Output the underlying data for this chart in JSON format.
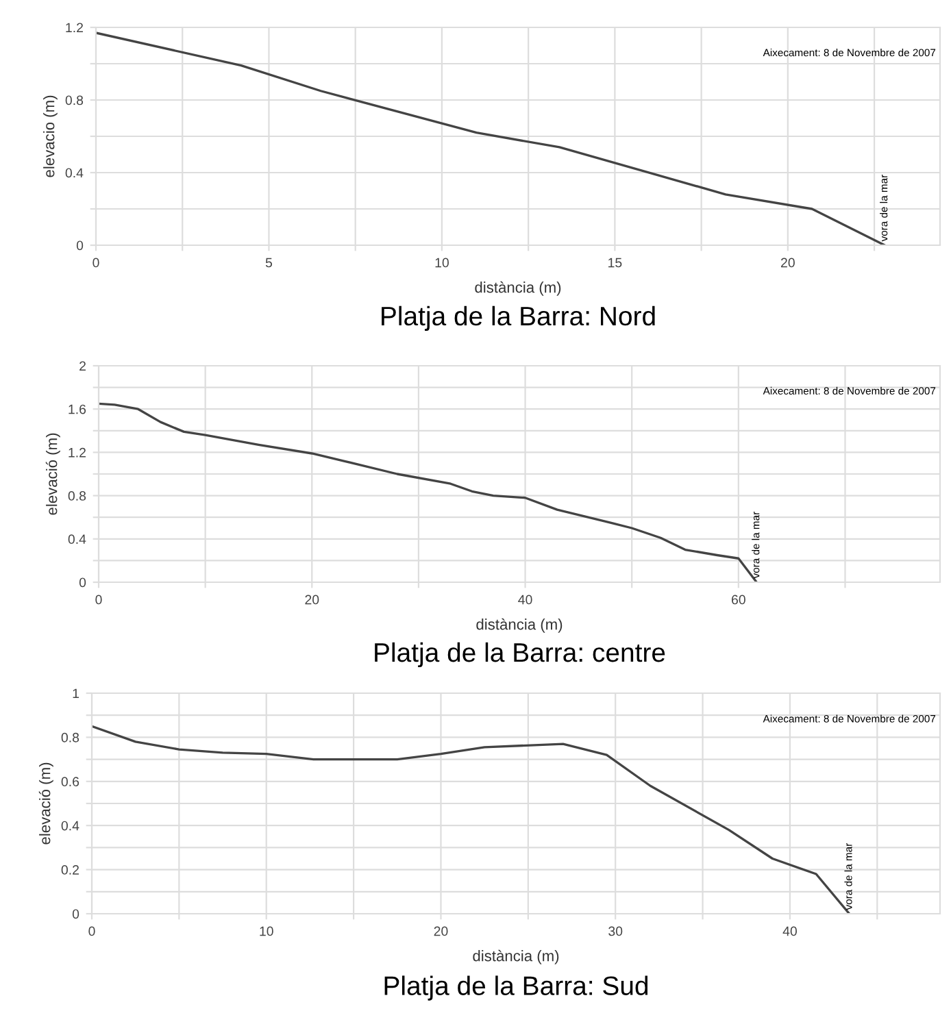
{
  "chart_data": [
    {
      "type": "line",
      "title": "Platja de la Barra: Nord",
      "xlabel": "distància (m)",
      "ylabel": "elevacio (m)",
      "x": [
        0,
        4.2,
        6.5,
        11,
        13.4,
        18.2,
        20.7,
        22.8
      ],
      "series": [
        {
          "color": "#444444",
          "values": [
            1.17,
            0.99,
            0.85,
            0.62,
            0.54,
            0.28,
            0.2,
            0.0
          ]
        }
      ],
      "xlim": [
        0,
        24.4
      ],
      "xticks": [
        0,
        {
          "value": 2.5,
          "label": null
        },
        5,
        {
          "value": 7.5,
          "label": null
        },
        10,
        {
          "value": 12.5,
          "label": null
        },
        15,
        {
          "value": 17.5,
          "label": null
        },
        20,
        {
          "value": 22.5,
          "label": null
        }
      ],
      "ylim": [
        0,
        1.2
      ],
      "yticks": [
        0,
        {
          "value": 0.2,
          "label": null
        },
        0.4,
        {
          "value": 0.6,
          "label": null
        },
        0.8,
        {
          "value": 1.0,
          "label": null
        },
        1.2
      ],
      "grid": true,
      "annotations": [
        "Aixecament: 8 de Novembre de 2007",
        {
          "text": "vora de la mar",
          "x": 22.8,
          "y": 0
        }
      ]
    },
    {
      "type": "line",
      "title": "Platja de la Barra: centre",
      "xlabel": "distància (m)",
      "ylabel": "elevació (m)",
      "x": [
        0,
        1.5,
        3.7,
        5.8,
        8,
        10,
        15,
        20,
        23,
        28,
        33,
        35,
        37,
        40,
        43,
        48,
        50,
        52.7,
        55,
        58,
        60,
        61.7
      ],
      "series": [
        {
          "color": "#444444",
          "values": [
            1.65,
            1.64,
            1.6,
            1.48,
            1.39,
            1.36,
            1.27,
            1.19,
            1.12,
            1.0,
            0.91,
            0.84,
            0.8,
            0.78,
            0.67,
            0.55,
            0.5,
            0.41,
            0.3,
            0.25,
            0.22,
            0.0
          ]
        }
      ],
      "xlim": [
        0,
        78.9
      ],
      "xticks": [
        0,
        {
          "value": 10,
          "label": null
        },
        20,
        {
          "value": 30,
          "label": null
        },
        40,
        {
          "value": 50,
          "label": null
        },
        60,
        {
          "value": 70,
          "label": null
        }
      ],
      "ylim": [
        0,
        2
      ],
      "yticks": [
        0,
        {
          "value": 0.2,
          "label": null
        },
        0.4,
        {
          "value": 0.6,
          "label": null
        },
        0.8,
        {
          "value": 1.0,
          "label": null
        },
        1.2,
        {
          "value": 1.4,
          "label": null
        },
        1.6,
        {
          "value": 1.8,
          "label": null
        },
        2
      ],
      "grid": true,
      "annotations": [
        "Aixecament: 8 de Novembre de 2007",
        {
          "text": "vora de la mar",
          "x": 61.7,
          "y": 0
        }
      ]
    },
    {
      "type": "line",
      "title": "Platja de la Barra: Sud",
      "xlabel": "distància (m)",
      "ylabel": "elevació (m)",
      "x": [
        0,
        2.5,
        5,
        7.5,
        10,
        12.7,
        17.5,
        20,
        22.5,
        27,
        29.5,
        32,
        36.5,
        39,
        41.5,
        43.4
      ],
      "series": [
        {
          "color": "#444444",
          "values": [
            0.85,
            0.78,
            0.745,
            0.73,
            0.725,
            0.7,
            0.7,
            0.725,
            0.755,
            0.77,
            0.72,
            0.58,
            0.38,
            0.25,
            0.18,
            0.0
          ]
        }
      ],
      "xlim": [
        0,
        48.6
      ],
      "xticks": [
        0,
        {
          "value": 5,
          "label": null
        },
        10,
        {
          "value": 15,
          "label": null
        },
        20,
        {
          "value": 25,
          "label": null
        },
        30,
        {
          "value": 35,
          "label": null
        },
        40,
        {
          "value": 45,
          "label": null
        }
      ],
      "ylim": [
        0,
        1
      ],
      "yticks": [
        0,
        {
          "value": 0.1,
          "label": null
        },
        0.2,
        {
          "value": 0.3,
          "label": null
        },
        0.4,
        {
          "value": 0.5,
          "label": null
        },
        0.6,
        {
          "value": 0.7,
          "label": null
        },
        0.8,
        {
          "value": 0.9,
          "label": null
        },
        1
      ],
      "grid": true,
      "annotations": [
        "Aixecament: 8 de Novembre de 2007",
        {
          "text": "vora de la mar",
          "x": 43.4,
          "y": 0
        }
      ]
    }
  ]
}
